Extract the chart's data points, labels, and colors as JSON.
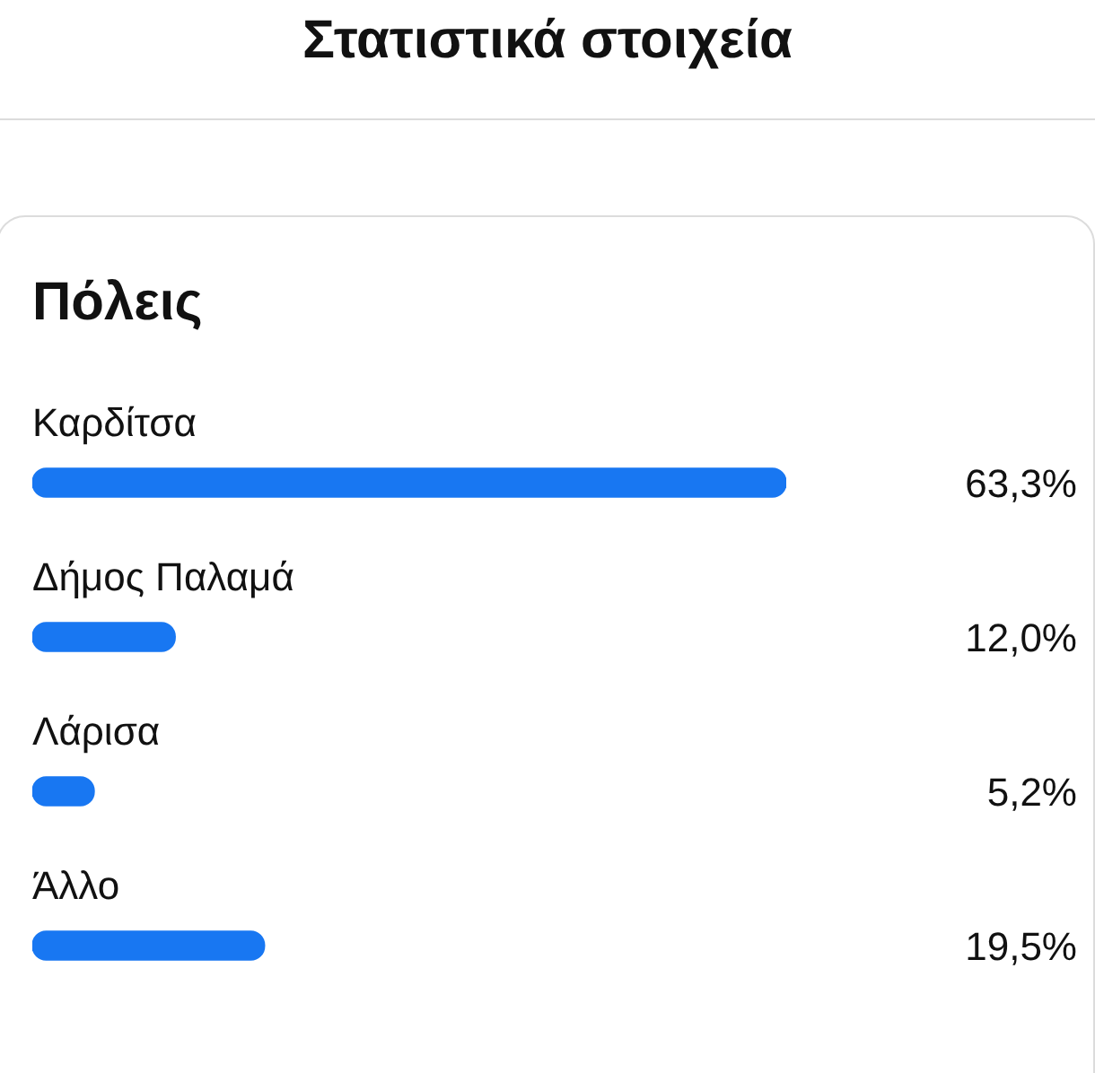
{
  "chart_data": {
    "type": "bar",
    "title": "Στατιστικά στοιχεία",
    "subtitle": "Πόλεις",
    "orientation": "horizontal",
    "categories": [
      "Καρδίτσα",
      "Δήμος Παλαμά",
      "Λάρισα",
      "Άλλο"
    ],
    "values": [
      63.3,
      12.0,
      5.2,
      19.5
    ],
    "value_labels": [
      "63,3%",
      "12,0%",
      "5,2%",
      "19,5%"
    ],
    "color": "#1877f2"
  }
}
